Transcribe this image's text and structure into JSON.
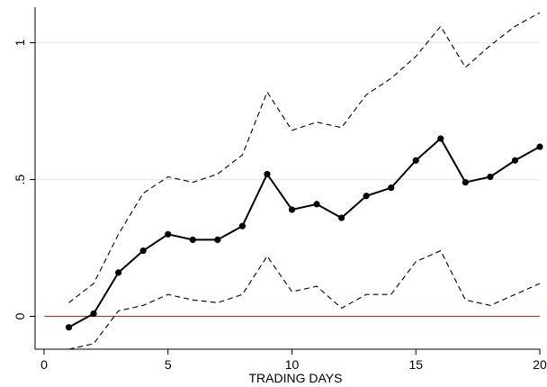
{
  "chart_data": {
    "type": "line",
    "title": "",
    "xlabel": "TRADING DAYS",
    "ylabel": "",
    "xlim": [
      0,
      20
    ],
    "ylim": [
      -0.12,
      1.13
    ],
    "x_ticks": [
      0,
      5,
      10,
      15,
      20
    ],
    "x_tick_labels": [
      "0",
      "5",
      "10",
      "15",
      "20"
    ],
    "y_ticks": [
      0,
      0.5,
      1
    ],
    "y_tick_labels": [
      "0",
      ".5",
      "1"
    ],
    "grid": "horizontal",
    "legend": "none",
    "x": [
      1,
      2,
      3,
      4,
      5,
      6,
      7,
      8,
      9,
      10,
      11,
      12,
      13,
      14,
      15,
      16,
      17,
      18,
      19,
      20
    ],
    "series": [
      {
        "style": "solid-markers",
        "color": "#000000",
        "values": [
          -0.04,
          0.01,
          0.16,
          0.24,
          0.3,
          0.28,
          0.28,
          0.33,
          0.52,
          0.39,
          0.41,
          0.36,
          0.44,
          0.47,
          0.57,
          0.65,
          0.49,
          0.51,
          0.57,
          0.62
        ]
      },
      {
        "style": "dashed",
        "color": "#000000",
        "values": [
          0.05,
          0.12,
          0.3,
          0.45,
          0.51,
          0.49,
          0.52,
          0.59,
          0.82,
          0.68,
          0.71,
          0.69,
          0.81,
          0.87,
          0.95,
          1.06,
          0.91,
          0.99,
          1.06,
          1.11
        ]
      },
      {
        "style": "dashed",
        "color": "#000000",
        "values": [
          -0.12,
          -0.1,
          0.02,
          0.04,
          0.08,
          0.06,
          0.05,
          0.08,
          0.22,
          0.09,
          0.11,
          0.03,
          0.08,
          0.08,
          0.2,
          0.24,
          0.06,
          0.04,
          0.08,
          0.12
        ]
      }
    ],
    "reference_line": {
      "y": 0,
      "color": "#e8201c"
    }
  }
}
